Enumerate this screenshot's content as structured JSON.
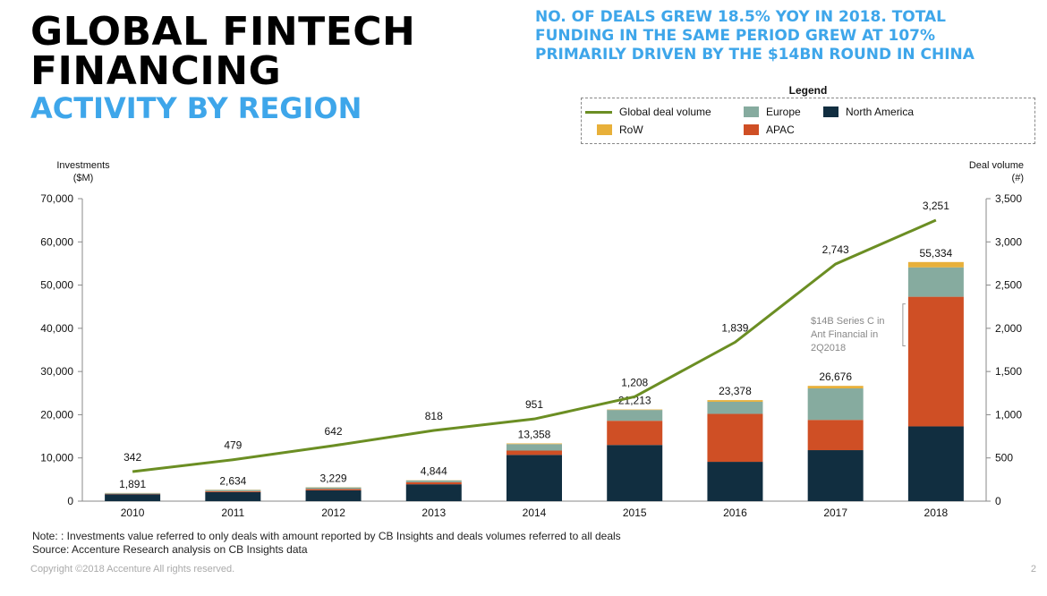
{
  "title": {
    "line1": "GLOBAL FINTECH",
    "line2": "FINANCING",
    "line3": "ACTIVITY BY REGION"
  },
  "headline": {
    "line1": "NO. OF DEALS GREW 18.5% YOY IN 2018. TOTAL",
    "line2": "FUNDING IN THE SAME PERIOD GREW AT 107%",
    "line3": "PRIMARILY DRIVEN BY THE $14BN ROUND IN CHINA"
  },
  "legend": {
    "title": "Legend",
    "items": [
      {
        "label": "Global deal volume",
        "kind": "line",
        "color": "#6b8e23"
      },
      {
        "label": "Europe",
        "kind": "box",
        "color": "#86ab9f"
      },
      {
        "label": "North America",
        "kind": "box",
        "color": "#112e40"
      },
      {
        "label": "RoW",
        "kind": "box",
        "color": "#e8b03a"
      },
      {
        "label": "APAC",
        "kind": "box",
        "color": "#cf4f25"
      }
    ]
  },
  "chart_data": {
    "type": "bar",
    "stacked": true,
    "categories": [
      "2010",
      "2011",
      "2012",
      "2013",
      "2014",
      "2015",
      "2016",
      "2017",
      "2018"
    ],
    "series": [
      {
        "name": "North America",
        "color": "#112e40",
        "values": [
          1600,
          2100,
          2500,
          3900,
          10700,
          13000,
          9100,
          11800,
          17300
        ]
      },
      {
        "name": "APAC",
        "color": "#cf4f25",
        "values": [
          100,
          200,
          300,
          500,
          1000,
          5600,
          11100,
          7000,
          30000
        ]
      },
      {
        "name": "Europe",
        "color": "#86ab9f",
        "values": [
          150,
          280,
          380,
          400,
          1500,
          2500,
          2800,
          7300,
          6800
        ]
      },
      {
        "name": "RoW",
        "color": "#e8b03a",
        "values": [
          41,
          54,
          49,
          44,
          158,
          113,
          378,
          576,
          1234
        ]
      }
    ],
    "totals": [
      "1,891",
      "2,634",
      "3,229",
      "4,844",
      "13,358",
      "21,213",
      "23,378",
      "26,676",
      "55,334"
    ],
    "line": {
      "name": "Global deal volume",
      "color": "#6b8e23",
      "values": [
        342,
        479,
        642,
        818,
        951,
        1208,
        1839,
        2743,
        3251
      ],
      "labels": [
        "342",
        "479",
        "642",
        "818",
        "951",
        "1,208",
        "1,839",
        "2,743",
        "3,251"
      ]
    },
    "y_left": {
      "label_line1": "Investments",
      "label_line2": "($M)",
      "min": 0,
      "max": 70000,
      "ticks": [
        "0",
        "10,000",
        "20,000",
        "30,000",
        "40,000",
        "50,000",
        "60,000",
        "70,000"
      ]
    },
    "y_right": {
      "label_line1": "Deal volume",
      "label_line2": "(#)",
      "min": 0,
      "max": 3500,
      "ticks": [
        "0",
        "500",
        "1,000",
        "1,500",
        "2,000",
        "2,500",
        "3,000",
        "3,500"
      ]
    },
    "annotation": {
      "line1": "$14B Series C in",
      "line2": "Ant Financial in",
      "line3": "2Q2018"
    }
  },
  "footnote": {
    "line1": "Note: : Investments value referred to only deals with amount reported by CB Insights and deals volumes referred to all deals",
    "line2": "Source: Accenture Research analysis on CB Insights data"
  },
  "copyright": "Copyright ©2018 Accenture All rights reserved.",
  "page_number": "2"
}
